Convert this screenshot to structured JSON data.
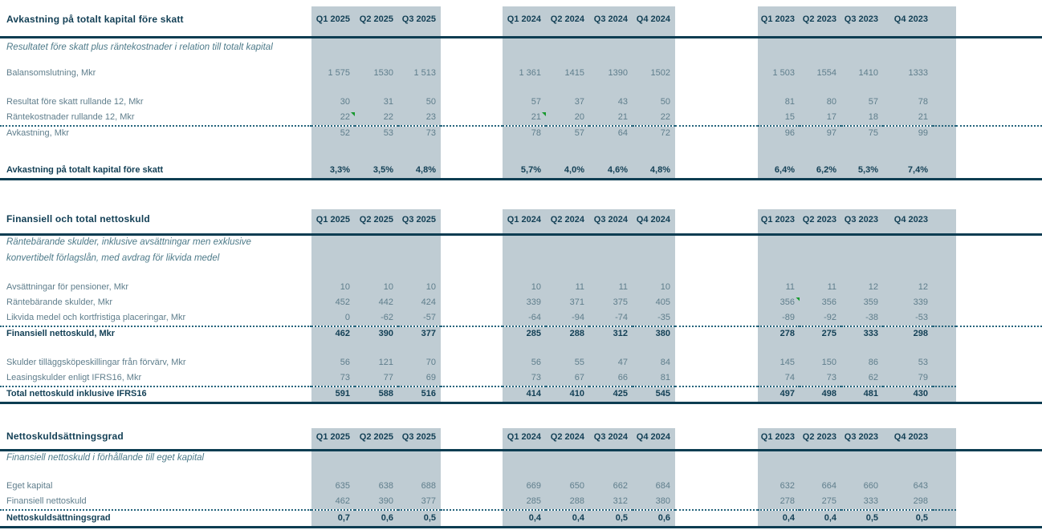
{
  "colors": {
    "band": "#bfccd3",
    "line_dark": "#0d3d52",
    "text_dark": "#123f55",
    "text_normal": "#5f7e8c",
    "text_italic": "#4d7a89",
    "flag_green": "#18992e"
  },
  "column_groups": [
    {
      "quarters": [
        "Q1 2025",
        "Q2 2025",
        "Q3 2025"
      ]
    },
    {
      "quarters": [
        "Q1 2024",
        "Q2 2024",
        "Q3 2024",
        "Q4 2024"
      ]
    },
    {
      "quarters": [
        "Q1 2023",
        "Q2 2023",
        "Q3 2023",
        "Q4 2023"
      ]
    }
  ],
  "tables": [
    {
      "title": "Avkastning på totalt kapital före skatt",
      "subtitle_lines": [
        "Resultatet före skatt plus räntekostnader i relation till totalt kapital"
      ],
      "rows": [
        {
          "label": "Balansomslutning, Mkr",
          "bold": false,
          "gap_before": 8,
          "dotted_after": "none",
          "solid_after": false,
          "v25": [
            "1 575",
            "1530",
            "1 513"
          ],
          "v24": [
            "1 361",
            "1415",
            "1390",
            "1502"
          ],
          "v23": [
            "1 503",
            "1554",
            "1410",
            "1333"
          ],
          "flags": []
        },
        {
          "label": "Resultat före skatt rullande 12, Mkr",
          "bold": false,
          "gap_before": 17,
          "dotted_after": "none",
          "solid_after": false,
          "v25": [
            "30",
            "31",
            "50"
          ],
          "v24": [
            "57",
            "37",
            "43",
            "50"
          ],
          "v23": [
            "81",
            "80",
            "57",
            "78"
          ],
          "flags": []
        },
        {
          "label": "Räntekostnader rullande 12, Mkr",
          "bold": false,
          "gap_before": 0,
          "dotted_after": "full",
          "solid_after": false,
          "v25": [
            "22",
            "22",
            "23"
          ],
          "v24": [
            "21",
            "20",
            "21",
            "22"
          ],
          "v23": [
            "15",
            "17",
            "18",
            "21"
          ],
          "flags": [
            "v25.0",
            "v24.0"
          ]
        },
        {
          "label": "Avkastning, Mkr",
          "bold": false,
          "gap_before": 0,
          "dotted_after": "none",
          "solid_after": false,
          "v25": [
            "52",
            "53",
            "73"
          ],
          "v24": [
            "78",
            "57",
            "64",
            "72"
          ],
          "v23": [
            "96",
            "97",
            "75",
            "99"
          ],
          "flags": []
        },
        {
          "label": "Avkastning på totalt kapital före skatt",
          "bold": true,
          "gap_before": 26,
          "dotted_after": "none",
          "solid_after": true,
          "v25": [
            "3,3%",
            "3,5%",
            "4,8%"
          ],
          "v24": [
            "5,7%",
            "4,0%",
            "4,6%",
            "4,8%"
          ],
          "v23": [
            "6,4%",
            "6,2%",
            "5,3%",
            "7,4%"
          ],
          "flags": []
        }
      ]
    },
    {
      "title": "Finansiell och total nettoskuld",
      "subtitle_lines": [
        "Räntebärande skulder, inklusive avsättningar men exklusive",
        "konvertibelt förlagslån, med avdrag för likvida medel"
      ],
      "rows": [
        {
          "label": "Avsättningar för pensioner, Mkr",
          "bold": false,
          "gap_before": 14,
          "dotted_after": "none",
          "solid_after": false,
          "v25": [
            "10",
            "10",
            "10"
          ],
          "v24": [
            "10",
            "11",
            "11",
            "10"
          ],
          "v23": [
            "11",
            "11",
            "12",
            "12"
          ],
          "flags": []
        },
        {
          "label": "Räntebärande skulder, Mkr",
          "bold": false,
          "gap_before": 0,
          "dotted_after": "none",
          "solid_after": false,
          "v25": [
            "452",
            "442",
            "424"
          ],
          "v24": [
            "339",
            "371",
            "375",
            "405"
          ],
          "v23": [
            "356",
            "356",
            "359",
            "339"
          ],
          "flags": [
            "v23.0"
          ]
        },
        {
          "label": "Likvida medel och kortfristiga placeringar, Mkr",
          "bold": false,
          "gap_before": 0,
          "dotted_after": "full",
          "solid_after": false,
          "v25": [
            "0",
            "-62",
            "-57"
          ],
          "v24": [
            "-64",
            "-94",
            "-74",
            "-35"
          ],
          "v23": [
            "-89",
            "-92",
            "-38",
            "-53"
          ],
          "flags": []
        },
        {
          "label": "Finansiell nettoskuld, Mkr",
          "bold": true,
          "gap_before": 0,
          "dotted_after": "none",
          "solid_after": false,
          "v25": [
            "462",
            "390",
            "377"
          ],
          "v24": [
            "285",
            "288",
            "312",
            "380"
          ],
          "v23": [
            "278",
            "275",
            "333",
            "298"
          ],
          "flags": []
        },
        {
          "label": "Skulder tilläggsköpeskillingar från förvärv, Mkr",
          "bold": false,
          "gap_before": 17,
          "dotted_after": "none",
          "solid_after": false,
          "v25": [
            "56",
            "121",
            "70"
          ],
          "v24": [
            "56",
            "55",
            "47",
            "84"
          ],
          "v23": [
            "145",
            "150",
            "86",
            "53"
          ],
          "flags": []
        },
        {
          "label": "Leasingskulder enligt IFRS16, Mkr",
          "bold": false,
          "gap_before": 0,
          "dotted_after": "band",
          "solid_after": false,
          "v25": [
            "73",
            "77",
            "69"
          ],
          "v24": [
            "73",
            "67",
            "66",
            "81"
          ],
          "v23": [
            "74",
            "73",
            "62",
            "79"
          ],
          "flags": []
        },
        {
          "label": "Total nettoskuld inklusive IFRS16",
          "bold": true,
          "gap_before": 0,
          "dotted_after": "none",
          "solid_after": true,
          "v25": [
            "591",
            "588",
            "516"
          ],
          "v24": [
            "414",
            "410",
            "425",
            "545"
          ],
          "v23": [
            "497",
            "498",
            "481",
            "430"
          ],
          "flags": []
        }
      ]
    },
    {
      "title": "Nettoskuldsättningsgrad",
      "subtitle_lines": [
        "Finansiell nettoskuld i förhållande till eget kapital"
      ],
      "rows": [
        {
          "label": "Eget kapital",
          "bold": false,
          "gap_before": 14,
          "dotted_after": "none",
          "solid_after": false,
          "v25": [
            "635",
            "638",
            "688"
          ],
          "v24": [
            "669",
            "650",
            "662",
            "684"
          ],
          "v23": [
            "632",
            "664",
            "660",
            "643"
          ],
          "flags": []
        },
        {
          "label": "Finansiell nettoskuld",
          "bold": false,
          "gap_before": 0,
          "dotted_after": "band",
          "solid_after": false,
          "v25": [
            "462",
            "390",
            "377"
          ],
          "v24": [
            "285",
            "288",
            "312",
            "380"
          ],
          "v23": [
            "278",
            "275",
            "333",
            "298"
          ],
          "flags": []
        },
        {
          "label": "Nettoskuldsättningsgrad",
          "bold": true,
          "gap_before": 0,
          "dotted_after": "none",
          "solid_after": true,
          "v25": [
            "0,7",
            "0,6",
            "0,5"
          ],
          "v24": [
            "0,4",
            "0,4",
            "0,5",
            "0,6"
          ],
          "v23": [
            "0,4",
            "0,4",
            "0,5",
            "0,5"
          ],
          "flags": []
        }
      ]
    }
  ]
}
